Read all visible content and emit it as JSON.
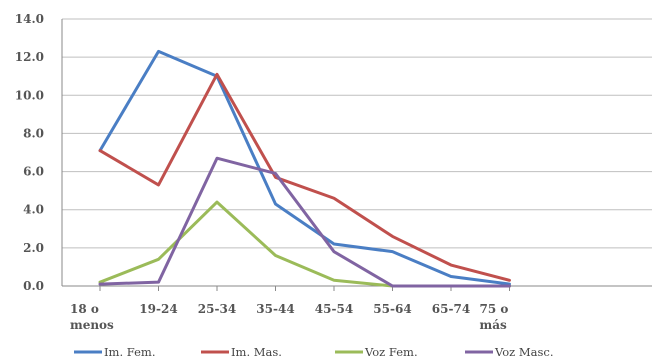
{
  "chart_data": {
    "type": "line",
    "title": "",
    "xlabel": "",
    "ylabel": "",
    "categories": [
      "18 o menos",
      "19-24",
      "25-34",
      "35-44",
      "45-54",
      "55-64",
      "65-74",
      "75 o más"
    ],
    "ylim": [
      0,
      14
    ],
    "yticks": [
      "0.0",
      "2.0",
      "4.0",
      "6.0",
      "8.0",
      "10.0",
      "12.0",
      "14.0"
    ],
    "grid": true,
    "legend_position": "bottom",
    "series": [
      {
        "name": "Im. Fem.",
        "color": "#4a7ec4",
        "values": [
          7.1,
          12.3,
          11.0,
          4.3,
          2.2,
          1.8,
          0.5,
          0.1
        ]
      },
      {
        "name": "Im. Mas.",
        "color": "#c0504d",
        "values": [
          7.1,
          5.3,
          11.1,
          5.7,
          4.6,
          2.6,
          1.1,
          0.3
        ]
      },
      {
        "name": "Voz Fem.",
        "color": "#9bbb59",
        "values": [
          0.2,
          1.4,
          4.4,
          1.6,
          0.3,
          0.0,
          0.0,
          0.0
        ]
      },
      {
        "name": "Voz Masc.",
        "color": "#8064a2",
        "values": [
          0.1,
          0.2,
          6.7,
          5.9,
          1.8,
          0.0,
          0.0,
          0.0
        ]
      }
    ]
  }
}
